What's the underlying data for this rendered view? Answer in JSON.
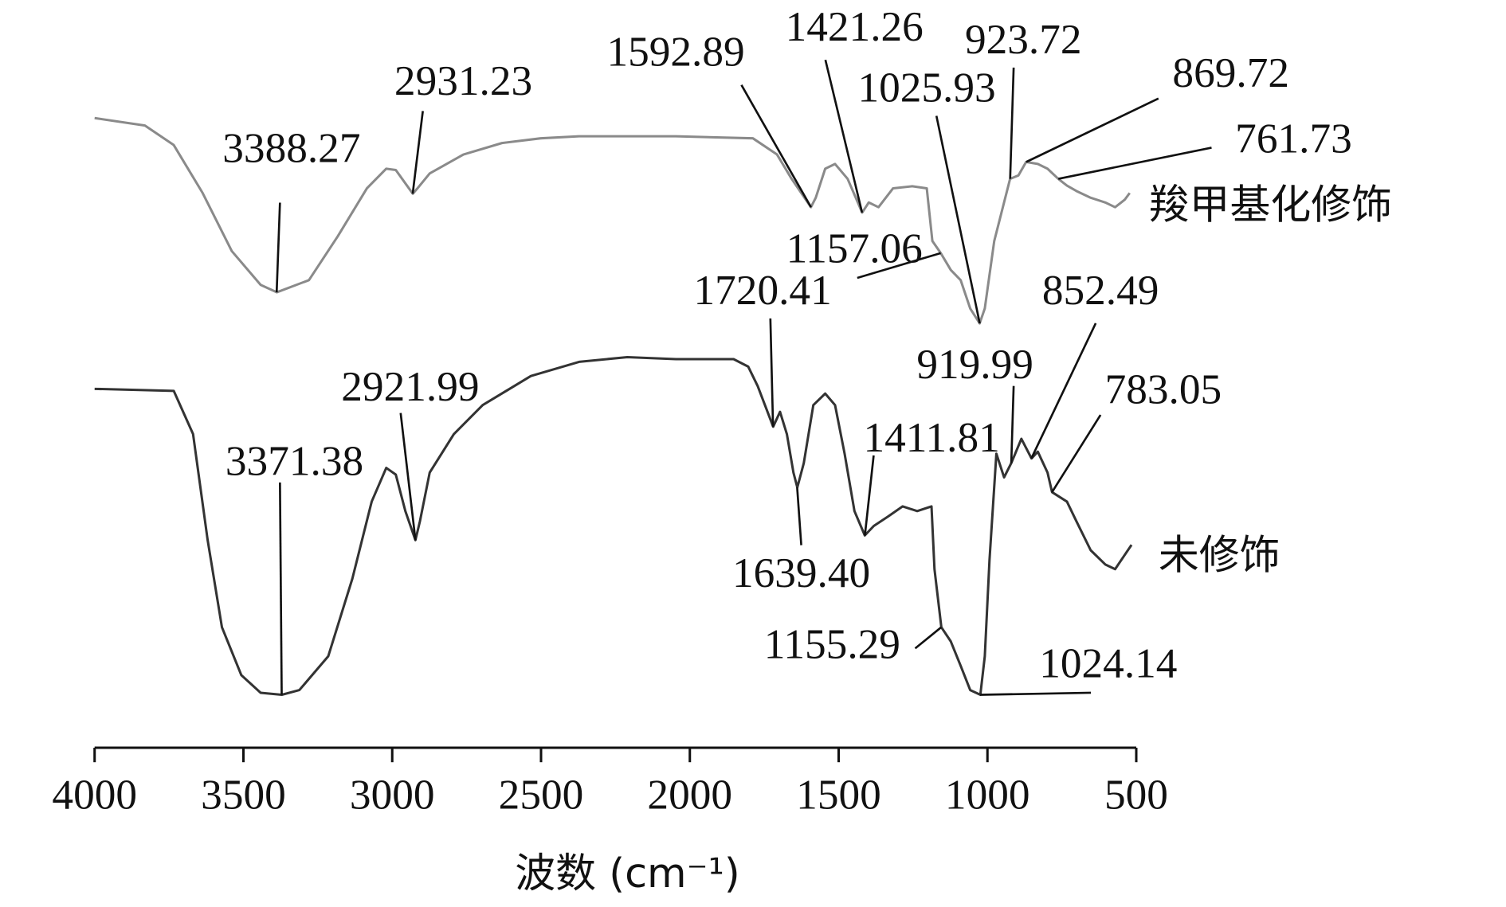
{
  "chart_data": {
    "type": "line",
    "xlabel": "波数 (cm⁻¹)",
    "xlim": [
      4000,
      500
    ],
    "ylim": [
      0,
      100
    ],
    "xticks": [
      4000,
      3500,
      3000,
      2500,
      2000,
      1500,
      1000,
      500
    ],
    "series": [
      {
        "name": "羧甲基化修饰",
        "color": "#8a8a8a",
        "x": [
          4000,
          3831,
          3734,
          3637,
          3539,
          3442,
          3388,
          3280,
          3183,
          3085,
          3020,
          2988,
          2931,
          2917,
          2874,
          2761,
          2631,
          2501,
          2372,
          2047,
          1788,
          1707,
          1658,
          1593,
          1577,
          1545,
          1512,
          1470,
          1421,
          1399,
          1366,
          1317,
          1253,
          1204,
          1185,
          1157,
          1123,
          1090,
          1058,
          1026,
          1009,
          977,
          924,
          896,
          870,
          831,
          798,
          762,
          733,
          701,
          653,
          604,
          571,
          539,
          522
        ],
        "values": [
          91.1,
          90,
          87.1,
          80,
          71.4,
          66.4,
          65.3,
          67.1,
          73.6,
          80.7,
          83.6,
          83.4,
          79.9,
          80.6,
          82.9,
          85.7,
          87.4,
          88.1,
          88.4,
          88.4,
          88.1,
          85.7,
          82.1,
          77.9,
          79.3,
          83.6,
          84.3,
          82.1,
          77.1,
          78.6,
          77.9,
          80.7,
          81,
          80.7,
          72.9,
          71.1,
          68.6,
          67.1,
          62.9,
          60.7,
          62.9,
          72.9,
          82.1,
          82.6,
          84.6,
          84.3,
          83.6,
          82.1,
          81.1,
          80.3,
          79.3,
          78.6,
          77.9,
          79,
          80
        ]
      },
      {
        "name": "未修饰",
        "color": "#333333",
        "x": [
          4000,
          3734,
          3669,
          3620,
          3572,
          3507,
          3442,
          3371,
          3312,
          3215,
          3134,
          3069,
          3020,
          2988,
          2956,
          2922,
          2907,
          2874,
          2793,
          2696,
          2534,
          2372,
          2210,
          2047,
          1853,
          1804,
          1772,
          1720,
          1697,
          1674,
          1652,
          1639,
          1617,
          1585,
          1545,
          1512,
          1480,
          1447,
          1412,
          1382,
          1334,
          1285,
          1236,
          1188,
          1178,
          1155,
          1123,
          1090,
          1058,
          1024,
          1009,
          993,
          970,
          944,
          920,
          886,
          852,
          831,
          798,
          783,
          733,
          701,
          653,
          604,
          571,
          539,
          516
        ],
        "values": [
          51,
          50.7,
          44.3,
          28.6,
          15.7,
          8.6,
          6,
          5.7,
          6.4,
          11.4,
          22.9,
          34.3,
          39.3,
          38.3,
          32.9,
          28.6,
          31.4,
          38.6,
          44.3,
          48.6,
          52.9,
          55,
          55.7,
          55.4,
          55.4,
          54.3,
          51.4,
          45.4,
          47.6,
          44.3,
          38.6,
          36.4,
          40,
          48.6,
          50.3,
          48.6,
          41.4,
          32.9,
          29.3,
          30.7,
          32.1,
          33.6,
          32.9,
          33.6,
          24.3,
          15.7,
          13.6,
          10,
          6.4,
          5.7,
          11.4,
          25.7,
          41.4,
          37.9,
          40,
          43.6,
          40.7,
          41.7,
          38.6,
          35.7,
          34.3,
          31.4,
          27.1,
          25,
          24.3,
          26.4,
          27.9
        ]
      }
    ],
    "annotations": [
      {
        "text": "3388.27",
        "x": 3388.27,
        "y": 65.3
      },
      {
        "text": "2931.23",
        "x": 2931.23,
        "y": 79.9
      },
      {
        "text": "1592.89",
        "x": 1592.89,
        "y": 77.9
      },
      {
        "text": "1421.26",
        "x": 1421.26,
        "y": 77.1
      },
      {
        "text": "1157.06",
        "x": 1157.06,
        "y": 71.1
      },
      {
        "text": "1025.93",
        "x": 1025.93,
        "y": 60.7
      },
      {
        "text": "923.72",
        "x": 923.72,
        "y": 82.1
      },
      {
        "text": "869.72",
        "x": 869.72,
        "y": 84.6
      },
      {
        "text": "761.73",
        "x": 761.73,
        "y": 82.1
      },
      {
        "text": "3371.38",
        "x": 3371.38,
        "y": 5.7
      },
      {
        "text": "2921.99",
        "x": 2921.99,
        "y": 28.6
      },
      {
        "text": "1720.41",
        "x": 1720.41,
        "y": 45.4
      },
      {
        "text": "1639.40",
        "x": 1639.4,
        "y": 36.4
      },
      {
        "text": "1411.81",
        "x": 1411.81,
        "y": 29.3
      },
      {
        "text": "1155.29",
        "x": 1155.29,
        "y": 15.7
      },
      {
        "text": "1024.14",
        "x": 1024.14,
        "y": 5.7
      },
      {
        "text": "919.99",
        "x": 919.99,
        "y": 40
      },
      {
        "text": "852.49",
        "x": 852.49,
        "y": 40.7
      },
      {
        "text": "783.05",
        "x": 783.05,
        "y": 35.7
      }
    ]
  }
}
